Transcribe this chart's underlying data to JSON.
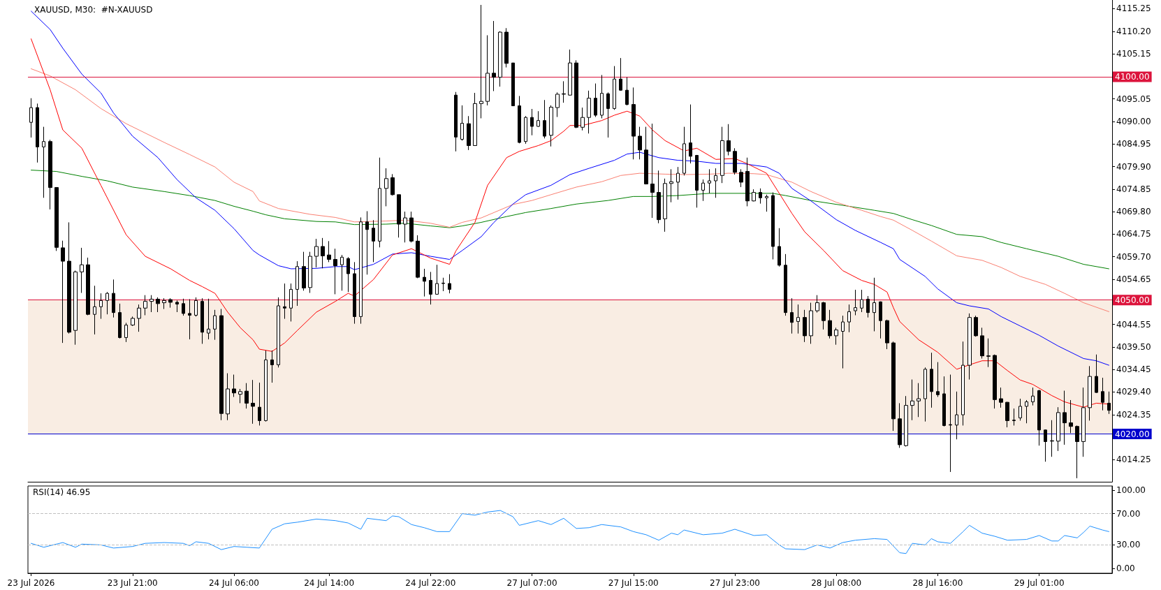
{
  "chart_data": [
    {
      "type": "candlestick",
      "title": "XAUUSD, M30:  #N-XAUUSD",
      "color": "#000000",
      "categories": [
        null,
        null,
        null,
        null,
        null,
        null,
        null,
        null,
        null,
        null,
        null,
        null,
        null,
        null,
        null,
        null,
        null,
        null,
        null,
        null,
        null,
        null,
        null,
        null,
        null,
        null,
        null,
        null,
        null,
        null,
        null,
        null,
        null,
        null,
        null,
        null,
        null,
        null,
        null,
        null,
        null,
        null,
        null,
        null,
        null,
        null,
        null,
        null,
        null,
        null,
        null,
        null,
        null,
        null,
        null,
        null,
        null,
        null,
        null,
        null,
        null,
        null,
        null,
        null,
        null,
        null,
        null,
        null,
        null,
        null,
        null,
        null,
        null,
        null,
        null,
        null,
        null,
        null,
        null,
        null,
        null,
        null,
        null,
        null,
        null,
        null,
        null,
        null,
        null,
        null,
        null,
        null,
        null,
        null,
        null,
        null,
        null,
        null,
        null,
        null,
        null,
        null,
        null,
        null,
        null,
        null,
        null,
        null,
        null,
        null,
        null,
        null,
        null,
        null,
        null,
        null,
        null,
        null,
        null,
        null,
        null,
        null,
        null,
        null,
        null,
        null,
        null,
        null,
        null,
        null,
        null,
        null,
        null,
        null,
        null,
        null,
        null,
        null,
        null,
        null,
        null,
        null,
        null,
        null,
        null,
        null,
        null,
        null,
        null,
        null,
        null,
        null,
        null,
        null,
        null,
        null,
        null,
        null,
        null,
        null,
        null,
        null,
        null,
        null,
        null,
        null,
        null,
        null,
        null,
        null,
        null
      ],
      "ohlc": [
        [
          4089.8,
          4095.2,
          4086.4,
          4093.1
        ],
        [
          4093.1,
          4094.0,
          4080.8,
          4084.3
        ],
        [
          4084.3,
          4088.8,
          4072.9,
          4085.5
        ],
        [
          4085.5,
          4085.9,
          4070.3,
          4075.2
        ],
        [
          4075.2,
          4075.3,
          4061.0,
          4061.8
        ],
        [
          4061.7,
          4063.3,
          4040.4,
          4058.7
        ],
        [
          4058.7,
          4067.4,
          4042.5,
          4042.8
        ],
        [
          4043.2,
          4056.6,
          4040.0,
          4056.3
        ],
        [
          4056.3,
          4061.7,
          4051.6,
          4057.9
        ],
        [
          4057.9,
          4059.5,
          4046.6,
          4046.8
        ],
        [
          4046.8,
          4053.2,
          4042.3,
          4048.5
        ],
        [
          4048.5,
          4051.5,
          4045.8,
          4049.9
        ],
        [
          4049.9,
          4051.8,
          4046.8,
          4051.5
        ],
        [
          4051.5,
          4054.6,
          4046.1,
          4047.2
        ],
        [
          4047.2,
          4049.2,
          4041.4,
          4041.6
        ],
        [
          4041.6,
          4044.9,
          4040.6,
          4044.4
        ],
        [
          4044.4,
          4046.3,
          4044.2,
          4045.9
        ],
        [
          4045.9,
          4049.0,
          4042.9,
          4048.2
        ],
        [
          4048.2,
          4051.1,
          4046.6,
          4049.7
        ],
        [
          4049.7,
          4051.1,
          4047.3,
          4050.2
        ],
        [
          4050.2,
          4050.6,
          4047.3,
          4049.2
        ],
        [
          4049.4,
          4050.4,
          4048.0,
          4049.9
        ],
        [
          4050.1,
          4050.4,
          4048.3,
          4049.5
        ],
        [
          4049.5,
          4049.9,
          4047.3,
          4049.1
        ],
        [
          4049.2,
          4050.3,
          4046.5,
          4047.0
        ],
        [
          4047.0,
          4050.2,
          4041.2,
          4046.6
        ],
        [
          4046.6,
          4050.6,
          4046.3,
          4049.9
        ],
        [
          4049.7,
          4050.4,
          4040.2,
          4042.8
        ],
        [
          4042.6,
          4050.3,
          4041.2,
          4043.5
        ],
        [
          4043.5,
          4047.8,
          4041.1,
          4046.5
        ],
        [
          4046.5,
          4048.0,
          4023.1,
          4024.6
        ],
        [
          4024.5,
          4033.6,
          4023.1,
          4030.1
        ],
        [
          4030.1,
          4033.3,
          4028.3,
          4029.2
        ],
        [
          4028.9,
          4030.1,
          4026.9,
          4029.5
        ],
        [
          4029.6,
          4031.4,
          4025.7,
          4026.9
        ],
        [
          4026.9,
          4032.1,
          4022.3,
          4026.2
        ],
        [
          4026.0,
          4031.5,
          4021.9,
          4023.0
        ],
        [
          4023.0,
          4038.7,
          4022.8,
          4036.6
        ],
        [
          4036.6,
          4038.7,
          4031.5,
          4035.5
        ],
        [
          4035.5,
          4050.6,
          4034.9,
          4048.7
        ],
        [
          4048.5,
          4053.7,
          4045.8,
          4048.2
        ],
        [
          4048.2,
          4053.7,
          4045.2,
          4052.4
        ],
        [
          4052.4,
          4058.7,
          4048.7,
          4057.5
        ],
        [
          4057.5,
          4060.8,
          4052.1,
          4052.7
        ],
        [
          4052.8,
          4060.8,
          4051.6,
          4059.8
        ],
        [
          4059.8,
          4063.7,
          4057.3,
          4062.0
        ],
        [
          4062.0,
          4063.9,
          4057.1,
          4059.9
        ],
        [
          4060.1,
          4063.2,
          4058.5,
          4059.1
        ],
        [
          4059.1,
          4061.5,
          4051.3,
          4057.7
        ],
        [
          4057.9,
          4060.1,
          4052.1,
          4059.6
        ],
        [
          4059.3,
          4059.6,
          4051.8,
          4055.9
        ],
        [
          4055.9,
          4058.5,
          4044.7,
          4046.3
        ],
        [
          4046.3,
          4068.5,
          4044.7,
          4067.5
        ],
        [
          4067.5,
          4069.9,
          4055.7,
          4065.8
        ],
        [
          4066.1,
          4067.9,
          4058.5,
          4063.2
        ],
        [
          4063.2,
          4081.9,
          4061.8,
          4075.0
        ],
        [
          4075.0,
          4079.5,
          4071.0,
          4077.2
        ],
        [
          4077.4,
          4078.2,
          4073.4,
          4073.6
        ],
        [
          4073.6,
          4073.6,
          4064.0,
          4067.0
        ],
        [
          4067.0,
          4069.8,
          4062.9,
          4068.4
        ],
        [
          4068.4,
          4069.8,
          4062.9,
          4063.2
        ],
        [
          4063.2,
          4064.5,
          4054.9,
          4055.1
        ],
        [
          4055.1,
          4057.0,
          4050.8,
          4054.2
        ],
        [
          4054.4,
          4056.3,
          4049.0,
          4051.3
        ],
        [
          4051.3,
          4057.9,
          4051.3,
          4053.7
        ],
        [
          4053.7,
          4055.0,
          4052.0,
          4053.8
        ],
        [
          4053.7,
          4055.8,
          4051.5,
          4052.4
        ],
        [
          4095.9,
          4096.6,
          4083.3,
          4086.5
        ],
        [
          4086.0,
          4093.6,
          4085.7,
          4089.6
        ],
        [
          4089.5,
          4091.2,
          4083.6,
          4084.6
        ],
        [
          4084.6,
          4096.4,
          4084.6,
          4094.0
        ],
        [
          4094.0,
          4116.1,
          4090.7,
          4094.5
        ],
        [
          4094.5,
          4109.3,
          4093.6,
          4100.8
        ],
        [
          4100.8,
          4112.5,
          4096.8,
          4099.9
        ],
        [
          4099.9,
          4110.2,
          4097.8,
          4110.0
        ],
        [
          4110.0,
          4110.9,
          4102.1,
          4103.0
        ],
        [
          4103.1,
          4103.1,
          4093.5,
          4093.5
        ],
        [
          4093.5,
          4095.7,
          4085.1,
          4085.3
        ],
        [
          4085.5,
          4091.2,
          4085.0,
          4090.9
        ],
        [
          4090.9,
          4092.8,
          4086.9,
          4088.9
        ],
        [
          4088.9,
          4092.3,
          4088.8,
          4090.2
        ],
        [
          4090.2,
          4094.8,
          4086.2,
          4086.7
        ],
        [
          4086.9,
          4093.6,
          4084.4,
          4093.2
        ],
        [
          4093.1,
          4096.5,
          4091.0,
          4096.1
        ],
        [
          4096.1,
          4099.0,
          4094.2,
          4096.2
        ],
        [
          4095.9,
          4106.1,
          4095.8,
          4103.1
        ],
        [
          4103.1,
          4103.7,
          4088.5,
          4088.7
        ],
        [
          4088.7,
          4093.1,
          4088.0,
          4090.9
        ],
        [
          4090.9,
          4096.9,
          4087.3,
          4095.2
        ],
        [
          4095.2,
          4098.5,
          4091.0,
          4091.4
        ],
        [
          4091.4,
          4100.4,
          4090.7,
          4096.3
        ],
        [
          4096.2,
          4096.5,
          4086.4,
          4092.9
        ],
        [
          4092.9,
          4102.4,
          4092.6,
          4099.5
        ],
        [
          4099.5,
          4104.2,
          4096.9,
          4097.0
        ],
        [
          4097.0,
          4099.9,
          4093.6,
          4093.8
        ],
        [
          4093.8,
          4097.6,
          4081.5,
          4086.7
        ],
        [
          4086.7,
          4088.8,
          4081.5,
          4083.6
        ],
        [
          4083.6,
          4088.8,
          4075.9,
          4076.0
        ],
        [
          4076.0,
          4089.5,
          4068.4,
          4074.1
        ],
        [
          4074.1,
          4079.0,
          4067.2,
          4068.0
        ],
        [
          4068.2,
          4077.2,
          4065.3,
          4076.1
        ],
        [
          4076.1,
          4079.3,
          4071.9,
          4076.5
        ],
        [
          4076.4,
          4079.8,
          4072.5,
          4078.4
        ],
        [
          4078.4,
          4088.8,
          4077.9,
          4085.0
        ],
        [
          4085.2,
          4093.8,
          4080.6,
          4082.2
        ],
        [
          4082.4,
          4082.5,
          4070.7,
          4074.6
        ],
        [
          4074.6,
          4077.0,
          4072.2,
          4076.2
        ],
        [
          4076.2,
          4079.3,
          4073.9,
          4076.7
        ],
        [
          4076.7,
          4079.5,
          4072.9,
          4077.9
        ],
        [
          4077.9,
          4088.8,
          4076.2,
          4085.7
        ],
        [
          4085.7,
          4089.4,
          4082.4,
          4083.3
        ],
        [
          4083.3,
          4084.0,
          4078.1,
          4078.6
        ],
        [
          4078.6,
          4079.3,
          4075.3,
          4076.4
        ],
        [
          4078.8,
          4081.9,
          4071.0,
          4072.2
        ],
        [
          4072.2,
          4074.8,
          4072.1,
          4074.1
        ],
        [
          4074.1,
          4075.0,
          4071.6,
          4072.9
        ],
        [
          4072.9,
          4073.6,
          4069.8,
          4073.2
        ],
        [
          4073.4,
          4074.1,
          4059.1,
          4062.0
        ],
        [
          4062.0,
          4066.1,
          4057.5,
          4057.8
        ],
        [
          4057.8,
          4060.3,
          4046.5,
          4047.2
        ],
        [
          4047.2,
          4050.4,
          4042.5,
          4045.0
        ],
        [
          4045.2,
          4049.0,
          4042.5,
          4046.1
        ],
        [
          4046.1,
          4047.8,
          4040.6,
          4042.0
        ],
        [
          4042.0,
          4049.4,
          4040.2,
          4047.6
        ],
        [
          4047.6,
          4051.1,
          4047.2,
          4049.4
        ],
        [
          4049.4,
          4049.6,
          4043.4,
          4045.4
        ],
        [
          4045.4,
          4047.8,
          4041.4,
          4042.0
        ],
        [
          4042.0,
          4043.8,
          4040.0,
          4043.3
        ],
        [
          4043.0,
          4046.5,
          4034.7,
          4045.1
        ],
        [
          4045.1,
          4049.0,
          4042.8,
          4047.4
        ],
        [
          4047.6,
          4052.3,
          4046.6,
          4048.3
        ],
        [
          4048.2,
          4052.3,
          4047.3,
          4050.1
        ],
        [
          4050.2,
          4050.9,
          4046.1,
          4047.2
        ],
        [
          4047.2,
          4055.0,
          4043.0,
          4049.4
        ],
        [
          4049.6,
          4049.7,
          4041.4,
          4045.4
        ],
        [
          4045.4,
          4045.6,
          4039.0,
          4040.4
        ],
        [
          4040.4,
          4040.7,
          4020.7,
          4023.4
        ],
        [
          4023.4,
          4026.9,
          4016.9,
          4017.6
        ],
        [
          4017.4,
          4028.5,
          4017.2,
          4026.4
        ],
        [
          4026.4,
          4032.2,
          4023.1,
          4027.4
        ],
        [
          4027.4,
          4031.4,
          4023.8,
          4027.9
        ],
        [
          4027.9,
          4034.9,
          4022.8,
          4034.5
        ],
        [
          4034.5,
          4038.2,
          4025.9,
          4029.5
        ],
        [
          4029.5,
          4036.1,
          4028.3,
          4028.8
        ],
        [
          4029.0,
          4032.9,
          4021.7,
          4021.9
        ],
        [
          4022.1,
          4033.3,
          4011.5,
          4022.0
        ],
        [
          4022.0,
          4029.5,
          4018.8,
          4024.3
        ],
        [
          4024.3,
          4040.7,
          4021.9,
          4035.4
        ],
        [
          4035.4,
          4047.0,
          4032.2,
          4046.1
        ],
        [
          4046.1,
          4046.5,
          4041.8,
          4042.0
        ],
        [
          4042.0,
          4043.8,
          4036.9,
          4037.5
        ],
        [
          4037.5,
          4041.4,
          4035.0,
          4037.4
        ],
        [
          4037.6,
          4037.8,
          4025.7,
          4027.7
        ],
        [
          4027.9,
          4030.4,
          4025.9,
          4027.1
        ],
        [
          4027.1,
          4027.2,
          4021.5,
          4023.0
        ],
        [
          4023.1,
          4025.7,
          4021.9,
          4023.0
        ],
        [
          4023.6,
          4027.9,
          4023.0,
          4026.2
        ],
        [
          4026.2,
          4027.6,
          4022.4,
          4027.2
        ],
        [
          4027.2,
          4030.4,
          4026.4,
          4028.5
        ],
        [
          4029.7,
          4029.9,
          4017.4,
          4020.9
        ],
        [
          4020.9,
          4021.0,
          4013.8,
          4018.3
        ],
        [
          4018.4,
          4023.1,
          4014.9,
          4018.5
        ],
        [
          4018.4,
          4026.0,
          4016.2,
          4024.8
        ],
        [
          4024.8,
          4029.7,
          4017.6,
          4022.5
        ],
        [
          4022.5,
          4027.6,
          4020.2,
          4021.7
        ],
        [
          4021.7,
          4021.9,
          4010.1,
          4018.3
        ],
        [
          4018.3,
          4030.4,
          4014.9,
          4025.9
        ],
        [
          4025.9,
          4035.2,
          4023.0,
          4032.9
        ],
        [
          4032.9,
          4037.8,
          4029.2,
          4029.3
        ],
        [
          4029.5,
          4032.6,
          4025.3,
          4027.1
        ],
        [
          4026.9,
          4029.5,
          4024.5,
          4025.3
        ]
      ],
      "series": [
        {
          "type": "line",
          "color": "#008000",
          "values": [
            4079.1,
            null,
            null,
            null,
            4078.8,
            null,
            null,
            null,
            4077.7,
            null,
            null,
            null,
            4076.7,
            null,
            null,
            null,
            4075.3,
            null,
            null,
            null,
            null,
            4074.3,
            null,
            null,
            null,
            4073.4,
            null,
            null,
            null,
            4072.3,
            null,
            null,
            4071.0,
            null,
            null,
            4069.9,
            null,
            4069.1,
            null,
            null,
            4068.2,
            null,
            null,
            null,
            null,
            4067.6,
            null,
            null,
            4067.5,
            null,
            null,
            4066.9,
            null,
            null,
            null,
            null,
            4067.0,
            null,
            null,
            4067.2,
            null,
            null,
            null,
            4066.6,
            null,
            null,
            4066.2,
            null,
            4066.6,
            null,
            null,
            4067.4,
            null,
            null,
            null,
            4068.7,
            null,
            null,
            4069.6,
            null,
            null,
            null,
            4070.5,
            null,
            null,
            null,
            4071.5,
            null,
            null,
            null,
            null,
            4072.3,
            null,
            null,
            null,
            4073.2,
            null,
            null,
            4073.2,
            null,
            null,
            null,
            4073.4,
            null,
            null,
            null,
            null,
            4073.9,
            null,
            null,
            null,
            null,
            4073.9,
            null,
            null,
            null,
            null,
            4073.9,
            null,
            4073.4,
            null,
            null,
            null,
            4072.3,
            null,
            null,
            null,
            null,
            null,
            4071.0,
            null,
            null,
            null,
            4070.1,
            null,
            null,
            4069.4,
            null,
            null,
            4068.0,
            null,
            null,
            4066.7,
            null,
            null,
            null,
            4064.7,
            null,
            null,
            null,
            4064.2,
            null,
            null,
            4062.9,
            null,
            null,
            null,
            4061.5,
            null,
            null,
            null,
            null,
            4059.8,
            null,
            null,
            null,
            4058.0,
            null,
            null,
            null,
            4057.0
          ]
        },
        {
          "type": "line",
          "color": "#fa8072",
          "values": [
            4101.8,
            null,
            null,
            4100.2,
            null,
            null,
            null,
            4097.1,
            null,
            null,
            null,
            4092.9,
            null,
            null,
            null,
            4089.5,
            null,
            null,
            null,
            null,
            null,
            4085.3,
            null,
            null,
            null,
            4082.6,
            null,
            null,
            null,
            4079.8,
            null,
            null,
            4076.4,
            null,
            null,
            4074.3,
            4072.2,
            null,
            null,
            4070.5,
            null,
            null,
            null,
            null,
            4069.2,
            null,
            null,
            null,
            4068.5,
            null,
            null,
            4067.5,
            null,
            null,
            null,
            null,
            4067.7,
            null,
            null,
            4067.9,
            null,
            null,
            null,
            4067.2,
            null,
            null,
            4066.3,
            null,
            4067.4,
            null,
            null,
            4068.4,
            null,
            4069.6,
            null,
            null,
            4071.4,
            null,
            null,
            4072.3,
            null,
            null,
            4073.6,
            null,
            null,
            null,
            4075.3,
            null,
            null,
            null,
            4076.5,
            null,
            null,
            4077.9,
            null,
            null,
            4078.4,
            null,
            null,
            null,
            4078.2,
            null,
            null,
            4078.1,
            null,
            null,
            null,
            4078.2,
            null,
            null,
            4078.4,
            null,
            null,
            null,
            4078.3,
            null,
            4078.1,
            null,
            null,
            null,
            4076.4,
            null,
            null,
            4074.3,
            null,
            null,
            null,
            4071.9,
            null,
            null,
            null,
            4070.1,
            null,
            null,
            4068.7,
            null,
            4067.9,
            null,
            null,
            4065.6,
            null,
            null,
            4063.2,
            null,
            null,
            null,
            4059.9,
            null,
            null,
            null,
            4058.9,
            null,
            null,
            4057.3,
            null,
            null,
            4055.3,
            null,
            null,
            null,
            4053.5,
            null,
            null,
            4051.5,
            null,
            null,
            4049.4,
            null,
            null,
            null,
            4047.4
          ]
        },
        {
          "type": "line",
          "color": "#0000ff",
          "values": [
            4114.7,
            null,
            null,
            4110.6,
            null,
            4106.4,
            null,
            null,
            4100.6,
            null,
            null,
            4096.4,
            null,
            4091.9,
            null,
            null,
            4086.7,
            null,
            null,
            null,
            4081.9,
            null,
            null,
            4077.0,
            null,
            null,
            4072.9,
            null,
            null,
            4070.1,
            null,
            null,
            4066.0,
            null,
            null,
            4061.1,
            4060.1,
            null,
            null,
            4057.7,
            null,
            4057.0,
            null,
            null,
            null,
            4057.1,
            null,
            null,
            4057.5,
            null,
            4057.5,
            4056.8,
            null,
            null,
            4058.0,
            null,
            null,
            4060.3,
            null,
            null,
            4060.6,
            null,
            null,
            4059.8,
            null,
            null,
            4059.1,
            null,
            4061.1,
            null,
            null,
            4064.2,
            null,
            4067.4,
            null,
            null,
            4071.5,
            null,
            4073.6,
            null,
            null,
            null,
            4075.7,
            null,
            null,
            4078.1,
            null,
            null,
            4079.5,
            null,
            null,
            null,
            4081.3,
            null,
            4082.7,
            null,
            4083.1,
            null,
            null,
            4081.9,
            null,
            null,
            4081.3,
            null,
            null,
            4081.1,
            null,
            null,
            4080.6,
            null,
            null,
            null,
            4080.6,
            null,
            null,
            null,
            4079.8,
            null,
            4078.4,
            null,
            4075.0,
            null,
            null,
            4072.2,
            null,
            null,
            null,
            4068.0,
            null,
            null,
            4065.6,
            null,
            null,
            null,
            4062.9,
            null,
            4061.5,
            4059.1,
            null,
            null,
            null,
            4055.3,
            null,
            4052.5,
            null,
            null,
            4049.4,
            null,
            4048.7,
            null,
            null,
            4048.0,
            null,
            4046.3,
            null,
            null,
            4044.2,
            null,
            null,
            4042.1,
            null,
            null,
            4039.7,
            null,
            null,
            null,
            4036.9,
            null,
            4036.4,
            null,
            4035.4
          ]
        },
        {
          "type": "line",
          "color": "#ff0000",
          "values": [
            4108.5,
            null,
            null,
            4097.1,
            null,
            4088.1,
            null,
            null,
            4084.0,
            null,
            null,
            4075.7,
            null,
            null,
            null,
            4064.6,
            null,
            null,
            4059.8,
            null,
            null,
            null,
            4057.0,
            null,
            null,
            4054.4,
            null,
            4053.0,
            null,
            4051.5,
            null,
            4047.3,
            null,
            4043.8,
            null,
            4041.1,
            4039.0,
            null,
            4038.5,
            null,
            4040.4,
            null,
            4043.2,
            null,
            null,
            4047.3,
            null,
            null,
            4049.7,
            null,
            4051.5,
            4050.9,
            null,
            null,
            4054.6,
            null,
            null,
            4060.1,
            null,
            null,
            4061.5,
            null,
            null,
            4059.4,
            null,
            null,
            4058.0,
            4061.0,
            null,
            null,
            4067.4,
            null,
            4075.7,
            null,
            null,
            4081.9,
            null,
            4083.3,
            null,
            null,
            4084.6,
            null,
            4085.7,
            null,
            4087.8,
            4089.1,
            null,
            4089.1,
            null,
            null,
            4090.2,
            null,
            4091.4,
            null,
            4092.3,
            null,
            4091.2,
            null,
            4088.1,
            null,
            4085.7,
            null,
            null,
            4083.4,
            null,
            4084.0,
            null,
            null,
            4081.5,
            null,
            null,
            4081.7,
            null,
            4080.5,
            null,
            null,
            4078.4,
            null,
            4073.9,
            null,
            4069.4,
            null,
            4065.3,
            null,
            null,
            4061.1,
            null,
            null,
            4056.6,
            null,
            null,
            4054.4,
            null,
            4053.5,
            null,
            4051.8,
            4048.3,
            4045.2,
            null,
            null,
            4041.1,
            null,
            null,
            4038.3,
            null,
            null,
            4034.5,
            null,
            4035.5,
            null,
            4036.4,
            null,
            4036.4,
            null,
            4034.2,
            null,
            4032.1,
            null,
            4031.1,
            null,
            null,
            4028.6,
            null,
            4027.2,
            null,
            null,
            4026.0,
            null,
            4026.9,
            null,
            4026.7
          ]
        }
      ],
      "ylim": [
        4009.3,
        4117.2
      ],
      "yticks": [
        {
          "value": 4115.25,
          "label": "4115.25"
        },
        {
          "value": 4110.2,
          "label": "4110.20"
        },
        {
          "value": 4105.15,
          "label": "4105.15"
        },
        {
          "value": 4095.05,
          "label": "4095.05"
        },
        {
          "value": 4090,
          "label": "4090.00"
        },
        {
          "value": 4084.95,
          "label": "4084.95"
        },
        {
          "value": 4079.9,
          "label": "4079.90"
        },
        {
          "value": 4074.85,
          "label": "4074.85"
        },
        {
          "value": 4069.8,
          "label": "4069.80"
        },
        {
          "value": 4064.75,
          "label": "4064.75"
        },
        {
          "value": 4059.7,
          "label": "4059.70"
        },
        {
          "value": 4054.65,
          "label": "4054.65"
        },
        {
          "value": 4044.55,
          "label": "4044.55"
        },
        {
          "value": 4039.5,
          "label": "4039.50"
        },
        {
          "value": 4034.45,
          "label": "4034.45"
        },
        {
          "value": 4029.4,
          "label": "4029.40"
        },
        {
          "value": 4024.35,
          "label": "4024.35"
        },
        {
          "value": 4014.25,
          "label": "4014.25"
        }
      ],
      "tick_labels": "y",
      "ref_lines": [
        {
          "axis": "y",
          "value": 4100,
          "label": "4100.00",
          "color": "#dc143c"
        },
        {
          "axis": "y",
          "value": 4050,
          "label": "4050.00",
          "color": "#dc143c"
        },
        {
          "axis": "y",
          "value": 4020,
          "label": "4020.00",
          "color": "#0000cd"
        }
      ],
      "bands": [
        {
          "axis": "y",
          "from": 4020,
          "to": 4050,
          "color": "#f9ede3"
        }
      ]
    },
    {
      "type": "line",
      "title": "RSI(14) 46.95",
      "color": "#1e90ff",
      "categories": [
        "23 Jul 2026",
        null,
        null,
        null,
        null,
        null,
        null,
        null,
        null,
        null,
        null,
        null,
        null,
        null,
        null,
        null,
        "23 Jul 21:00",
        null,
        null,
        null,
        null,
        null,
        null,
        null,
        null,
        null,
        null,
        null,
        null,
        null,
        null,
        null,
        "24 Jul 06:00",
        null,
        null,
        null,
        null,
        null,
        null,
        null,
        null,
        null,
        null,
        null,
        null,
        null,
        null,
        "24 Jul 14:00",
        null,
        null,
        null,
        null,
        null,
        null,
        null,
        null,
        null,
        null,
        null,
        null,
        null,
        null,
        null,
        "24 Jul 22:00",
        null,
        null,
        null,
        null,
        null,
        null,
        null,
        null,
        null,
        null,
        null,
        null,
        null,
        null,
        null,
        "27 Jul 07:00",
        null,
        null,
        null,
        null,
        null,
        null,
        null,
        null,
        null,
        null,
        null,
        null,
        null,
        null,
        null,
        "27 Jul 15:00",
        null,
        null,
        null,
        null,
        null,
        null,
        null,
        null,
        null,
        null,
        null,
        null,
        null,
        null,
        null,
        "27 Jul 23:00",
        null,
        null,
        null,
        null,
        null,
        null,
        null,
        null,
        null,
        null,
        null,
        null,
        null,
        null,
        null,
        "28 Jul 08:00",
        null,
        null,
        null,
        null,
        null,
        null,
        null,
        null,
        null,
        null,
        null,
        null,
        null,
        null,
        null,
        "28 Jul 16:00",
        null,
        null,
        null,
        null,
        null,
        null,
        null,
        null,
        null,
        null,
        null,
        null,
        null,
        null,
        null,
        "29 Jul 01:00",
        null,
        null,
        null,
        null,
        null,
        null,
        null,
        null,
        null,
        null,
        null
      ],
      "values": [
        32,
        null,
        27,
        null,
        null,
        33,
        null,
        27,
        31,
        null,
        null,
        30,
        null,
        26,
        null,
        null,
        28,
        null,
        32,
        null,
        null,
        33,
        null,
        null,
        32,
        29,
        34,
        null,
        32,
        null,
        24,
        null,
        28,
        null,
        27,
        null,
        26,
        null,
        50,
        null,
        57,
        null,
        59,
        null,
        null,
        63,
        null,
        null,
        61,
        null,
        58,
        null,
        50,
        64,
        null,
        null,
        61,
        67,
        66,
        null,
        56,
        null,
        52,
        null,
        47,
        null,
        47,
        null,
        70,
        null,
        68,
        null,
        72,
        null,
        74,
        null,
        66,
        55,
        null,
        null,
        61,
        null,
        56,
        null,
        64,
        null,
        51,
        null,
        52,
        null,
        56,
        null,
        null,
        53,
        null,
        47,
        null,
        43,
        null,
        36,
        null,
        45,
        43,
        49,
        null,
        null,
        43,
        null,
        null,
        45,
        null,
        50,
        null,
        null,
        42,
        null,
        43,
        null,
        30,
        25,
        null,
        null,
        24,
        null,
        30,
        null,
        26,
        null,
        33,
        null,
        36,
        null,
        null,
        38,
        null,
        37,
        null,
        20,
        19,
        32,
        null,
        30,
        38,
        34,
        null,
        32,
        null,
        47,
        55,
        null,
        45,
        null,
        41,
        null,
        36,
        null,
        null,
        37,
        null,
        42,
        null,
        35,
        35,
        42,
        null,
        39,
        46,
        54,
        null,
        49,
        47
      ],
      "ylim": [
        -6.2,
        105.3
      ],
      "yticks": [
        {
          "value": 100,
          "label": "100.00"
        },
        {
          "value": 70,
          "label": "70.00"
        },
        {
          "value": 30,
          "label": "30.00"
        },
        {
          "value": 0,
          "label": "0.00"
        }
      ],
      "ref_lines": [
        {
          "axis": "y",
          "value": 70,
          "color": "#c0c0c0",
          "line_style": "dashed"
        },
        {
          "axis": "y",
          "value": 30,
          "color": "#c0c0c0",
          "line_style": "dashed"
        }
      ]
    }
  ]
}
